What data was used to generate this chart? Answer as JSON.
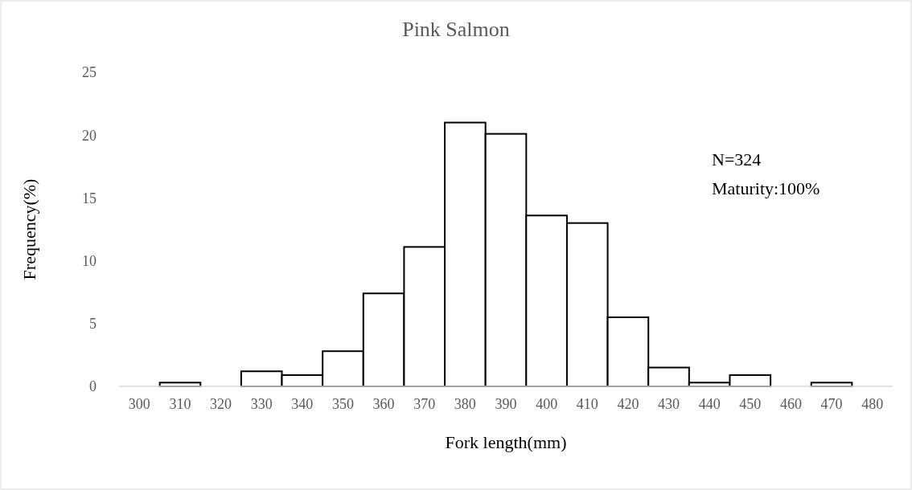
{
  "chart_data": {
    "type": "bar",
    "title": "Pink Salmon",
    "xlabel": "Fork length(mm)",
    "ylabel": "Frequency(%)",
    "categories": [
      "300",
      "310",
      "320",
      "330",
      "340",
      "350",
      "360",
      "370",
      "380",
      "390",
      "400",
      "410",
      "420",
      "430",
      "440",
      "450",
      "460",
      "470",
      "480"
    ],
    "values": [
      0,
      0.3,
      0,
      1.2,
      0.9,
      2.8,
      7.4,
      11.1,
      21.0,
      20.1,
      13.6,
      13.0,
      5.5,
      1.5,
      0.3,
      0.9,
      0,
      0.3,
      0
    ],
    "color": "#ffffff",
    "ylim": [
      0,
      25
    ],
    "yticks": [
      0,
      5,
      10,
      15,
      20,
      25
    ],
    "grid": false,
    "annotations": [
      "N=324",
      "Maturity:100%"
    ]
  }
}
